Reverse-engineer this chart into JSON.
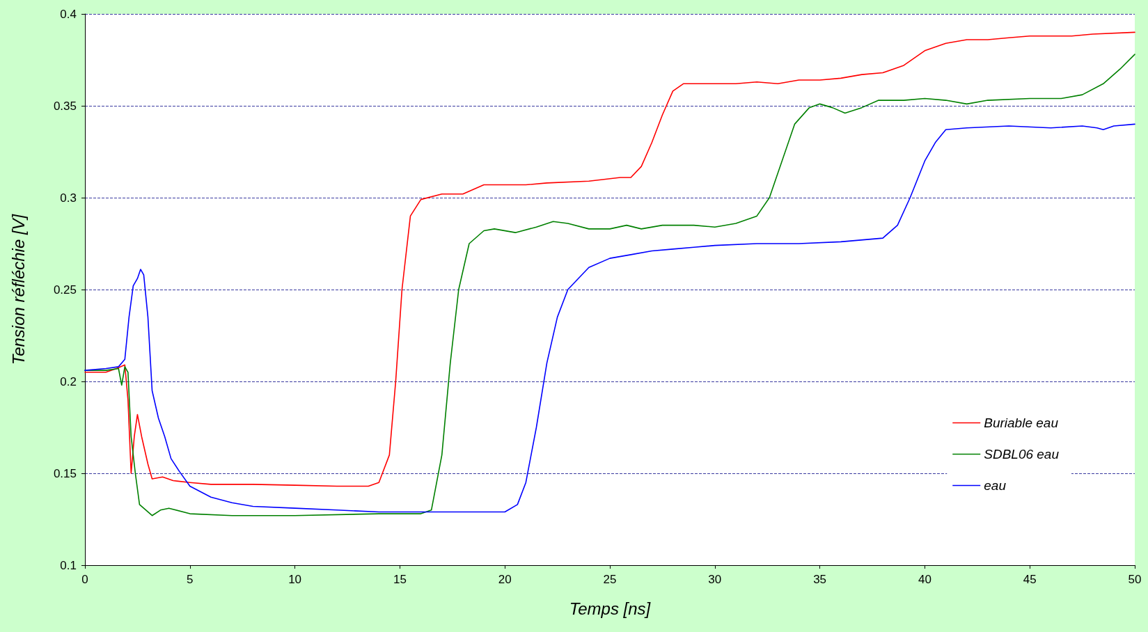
{
  "chart_data": {
    "type": "line",
    "xlabel": "Temps [ns]",
    "ylabel": "Tension réfléchie [V]",
    "xlim": [
      0,
      50
    ],
    "xticks": [
      0,
      5,
      10,
      15,
      20,
      25,
      30,
      35,
      40,
      45,
      50
    ],
    "ylim": [
      0.1,
      0.4
    ],
    "yticks": [
      0.1,
      0.15,
      0.2,
      0.25,
      0.3,
      0.35,
      0.4
    ],
    "grid": "y",
    "legend": "bottom right",
    "marker": "none",
    "line_style": "solid",
    "series": [
      {
        "name": "Buriable eau",
        "color": "#ff0000",
        "x": [
          0,
          1,
          1.5,
          1.9,
          2.05,
          2.2,
          2.35,
          2.5,
          2.7,
          3.0,
          3.2,
          3.7,
          4.2,
          5,
          6,
          8,
          10,
          12,
          13.5,
          14,
          14.5,
          14.8,
          15.1,
          15.5,
          16,
          17,
          18,
          19,
          20,
          21,
          22,
          24,
          25.5,
          26,
          26.5,
          27,
          27.5,
          28,
          28.5,
          30,
          31,
          32,
          33,
          34,
          35,
          36,
          37,
          38,
          39,
          40,
          41,
          42,
          43,
          44,
          45,
          47,
          48,
          50
        ],
        "values": [
          0.205,
          0.205,
          0.207,
          0.209,
          0.19,
          0.15,
          0.17,
          0.182,
          0.17,
          0.155,
          0.147,
          0.148,
          0.146,
          0.145,
          0.144,
          0.144,
          0.1435,
          0.143,
          0.143,
          0.145,
          0.16,
          0.2,
          0.25,
          0.29,
          0.299,
          0.302,
          0.302,
          0.307,
          0.307,
          0.307,
          0.308,
          0.309,
          0.311,
          0.311,
          0.317,
          0.33,
          0.345,
          0.358,
          0.362,
          0.362,
          0.362,
          0.363,
          0.362,
          0.364,
          0.364,
          0.365,
          0.367,
          0.368,
          0.372,
          0.38,
          0.384,
          0.386,
          0.386,
          0.387,
          0.388,
          0.388,
          0.389,
          0.39
        ]
      },
      {
        "name": "SDBL06 eau",
        "color": "#008000",
        "x": [
          0,
          1,
          1.6,
          1.75,
          1.9,
          2.05,
          2.2,
          2.4,
          2.6,
          3.0,
          3.2,
          3.6,
          4,
          5,
          7,
          10,
          14,
          16,
          16.5,
          17,
          17.4,
          17.8,
          18.3,
          19,
          19.5,
          20.5,
          21.5,
          22.3,
          23,
          24,
          25,
          25.8,
          26.5,
          27.5,
          29,
          30,
          31,
          32,
          32.6,
          33.2,
          33.8,
          34.5,
          35,
          35.6,
          36.2,
          37,
          37.8,
          39,
          40,
          41,
          42,
          43,
          45,
          46.5,
          47.5,
          48.5,
          49.3,
          50
        ],
        "values": [
          0.206,
          0.206,
          0.207,
          0.198,
          0.208,
          0.205,
          0.17,
          0.15,
          0.133,
          0.129,
          0.127,
          0.13,
          0.131,
          0.128,
          0.127,
          0.127,
          0.128,
          0.128,
          0.13,
          0.16,
          0.21,
          0.25,
          0.275,
          0.282,
          0.283,
          0.281,
          0.284,
          0.287,
          0.286,
          0.283,
          0.283,
          0.285,
          0.283,
          0.285,
          0.285,
          0.284,
          0.286,
          0.29,
          0.3,
          0.32,
          0.34,
          0.349,
          0.351,
          0.349,
          0.346,
          0.349,
          0.353,
          0.353,
          0.354,
          0.353,
          0.351,
          0.353,
          0.354,
          0.354,
          0.356,
          0.362,
          0.37,
          0.378
        ]
      },
      {
        "name": "eau",
        "color": "#0000ff",
        "x": [
          0,
          1,
          1.6,
          1.9,
          2.1,
          2.3,
          2.5,
          2.65,
          2.8,
          3.0,
          3.2,
          3.5,
          3.8,
          4.1,
          4.5,
          5,
          6,
          7,
          8,
          10,
          12,
          14,
          16,
          18,
          20,
          20.6,
          21,
          21.5,
          22,
          22.5,
          23,
          24,
          25,
          26,
          27,
          28,
          29,
          30,
          32,
          34,
          36,
          38,
          38.7,
          39.3,
          40,
          40.5,
          41,
          42,
          44,
          46,
          47.5,
          48.2,
          48.5,
          49,
          50
        ],
        "values": [
          0.206,
          0.207,
          0.208,
          0.212,
          0.235,
          0.252,
          0.256,
          0.261,
          0.258,
          0.235,
          0.195,
          0.18,
          0.17,
          0.158,
          0.151,
          0.143,
          0.137,
          0.134,
          0.132,
          0.131,
          0.13,
          0.129,
          0.129,
          0.129,
          0.129,
          0.133,
          0.145,
          0.175,
          0.21,
          0.235,
          0.25,
          0.262,
          0.267,
          0.269,
          0.271,
          0.272,
          0.273,
          0.274,
          0.275,
          0.275,
          0.276,
          0.278,
          0.285,
          0.3,
          0.32,
          0.33,
          0.337,
          0.338,
          0.339,
          0.338,
          0.339,
          0.338,
          0.337,
          0.339,
          0.34
        ]
      }
    ]
  }
}
